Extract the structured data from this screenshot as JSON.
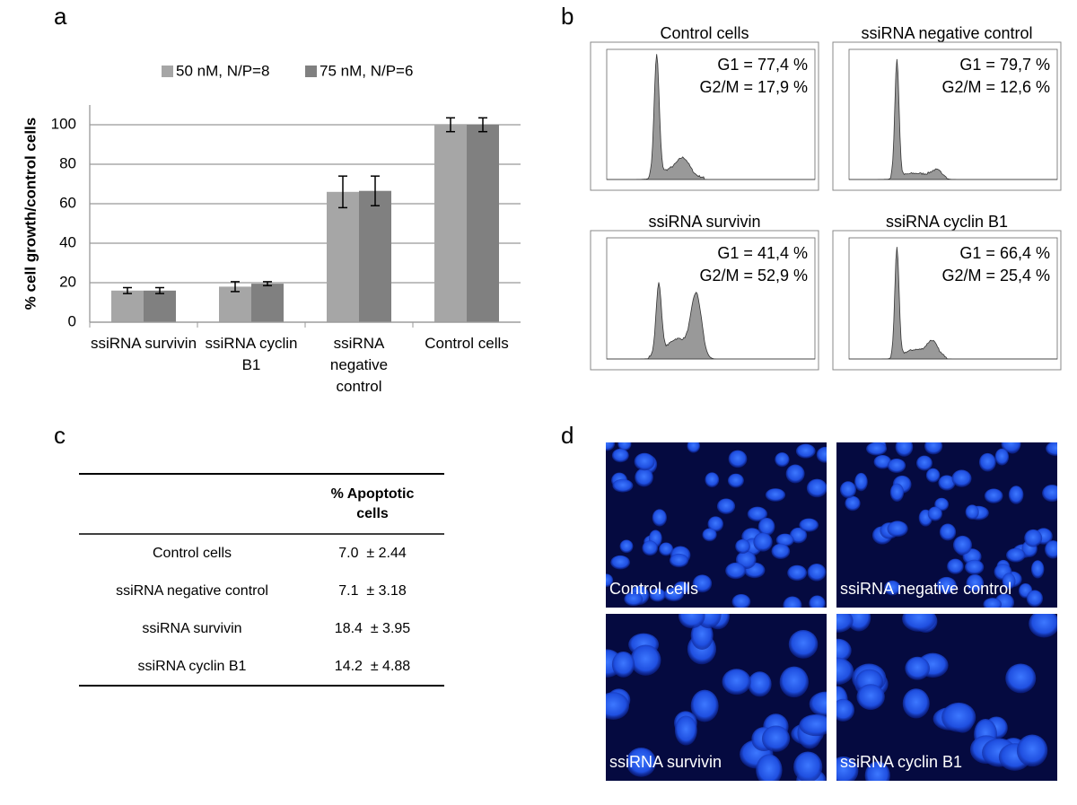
{
  "panel_labels": [
    "a",
    "b",
    "c",
    "d"
  ],
  "chart_data": {
    "type": "bar",
    "categories": [
      "ssiRNA survivin",
      "ssiRNA cyclin B1",
      "ssiRNA negative control",
      "Control cells"
    ],
    "series": [
      {
        "name": "50 nM, N/P=8",
        "color": "#a6a6a6",
        "values": [
          16,
          18,
          66,
          100
        ],
        "errors": [
          1.5,
          2.5,
          8,
          3.5
        ]
      },
      {
        "name": "75 nM, N/P=6",
        "color": "#808080",
        "values": [
          16,
          19.5,
          66.5,
          100
        ],
        "errors": [
          1.5,
          1,
          7.5,
          3.5
        ]
      }
    ],
    "y_label": "% cell growth/control cells",
    "ylim": [
      0,
      110
    ],
    "yticks": [
      0,
      20,
      40,
      60,
      80,
      100
    ],
    "grid": true,
    "legend": "top"
  },
  "cell_cycle": {
    "plots": [
      {
        "title": "Control cells",
        "g1": "G1 = 77,4 %",
        "g2m": "G2/M = 17,9 %"
      },
      {
        "title": "ssiRNA negative control",
        "g1": "G1 = 79,7 %",
        "g2m": "G2/M = 12,6 %"
      },
      {
        "title": "ssiRNA survivin",
        "g1": "G1 = 41,4 %",
        "g2m": "G2/M = 52,9 %"
      },
      {
        "title": "ssiRNA cyclin B1",
        "g1": "G1 = 66,4 %",
        "g2m": "G2/M = 25,4 %"
      }
    ]
  },
  "apoptosis_table": {
    "header": "% Apoptotic cells",
    "rows": [
      [
        "Control cells",
        "7.0  ± 2.44"
      ],
      [
        "ssiRNA negative control",
        "7.1  ± 3.18"
      ],
      [
        "ssiRNA survivin",
        "18.4  ± 3.95"
      ],
      [
        "ssiRNA cyclin B1",
        "14.2  ± 4.88"
      ]
    ]
  },
  "microscopy": {
    "captions": [
      "Control cells",
      "ssiRNA negative control",
      "ssiRNA survivin",
      "ssiRNA cyclin B1"
    ]
  }
}
